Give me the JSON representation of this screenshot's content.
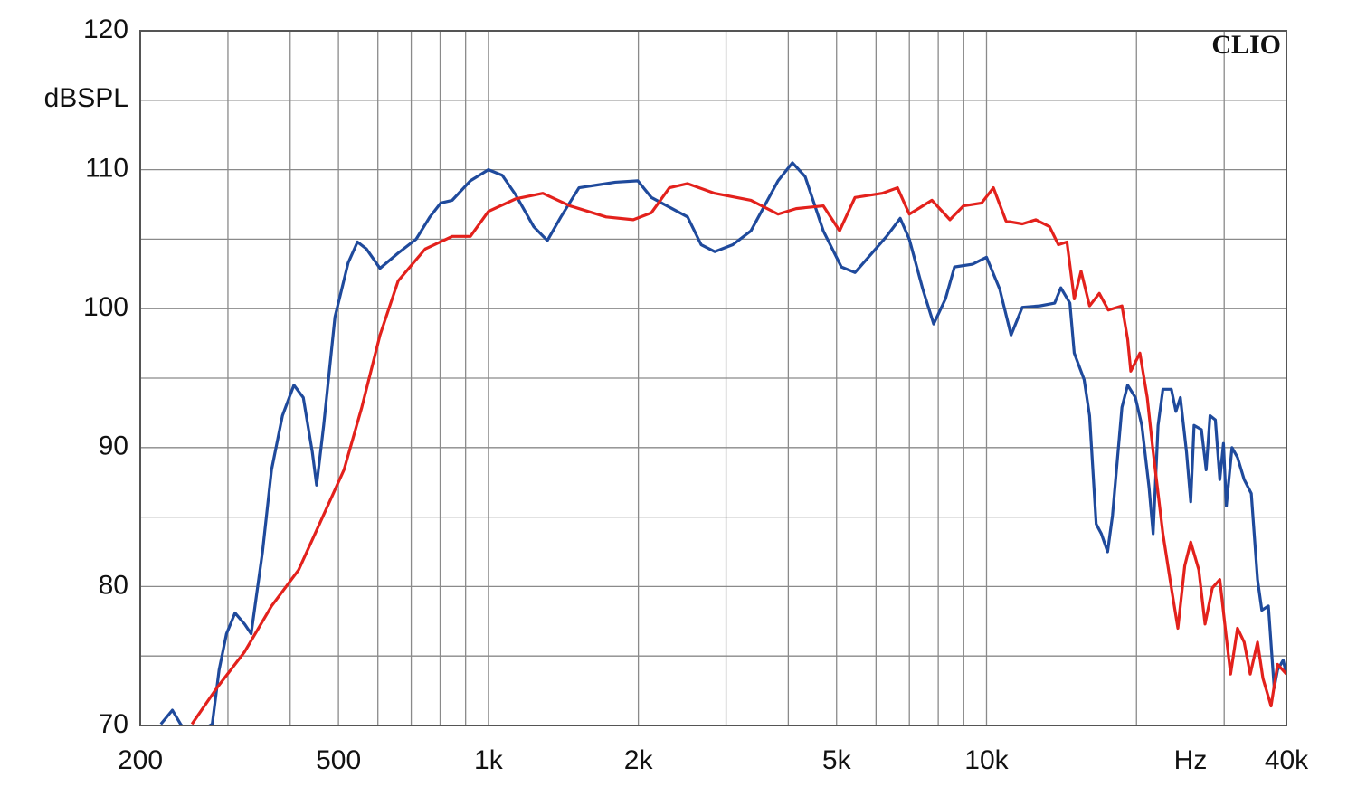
{
  "chart_data": {
    "type": "line",
    "y_label": "dBSPL",
    "x_label": "Hz",
    "annotation": "CLIO",
    "xscale": "log",
    "grid": true,
    "xlim": [
      200,
      40000
    ],
    "ylim": [
      70,
      120
    ],
    "xticks": [
      200,
      500,
      {
        "value": 1000,
        "label": "1k"
      },
      {
        "value": 2000,
        "label": "2k"
      },
      {
        "value": 5000,
        "label": "5k"
      },
      {
        "value": 10000,
        "label": "10k"
      },
      {
        "value": 40000,
        "label": "40k"
      }
    ],
    "xgrid": [
      300,
      400,
      600,
      700,
      800,
      900,
      3000,
      4000,
      6000,
      7000,
      8000,
      9000,
      20000,
      30000
    ],
    "yticks": [
      70,
      80,
      90,
      100,
      110,
      120
    ],
    "ygrid": [
      75,
      85,
      95,
      105,
      115
    ],
    "series": [
      {
        "color": "#1f4a9c",
        "x": [
          220,
          232,
          241,
          252,
          279,
          288,
          298,
          310,
          324,
          334,
          352,
          367,
          386,
          407,
          425,
          443,
          452,
          467,
          492,
          523,
          546,
          569,
          606,
          659,
          716,
          763,
          802,
          846,
          920,
          1000,
          1066,
          1134,
          1233,
          1313,
          1398,
          1520,
          1653,
          1797,
          1995,
          2124,
          2511,
          2674,
          2847,
          3095,
          3366,
          3815,
          4078,
          4324,
          4702,
          5112,
          5444,
          5794,
          6300,
          6710,
          6998,
          7448,
          7832,
          8270,
          8624,
          9374,
          10000,
          10630,
          11200,
          11800,
          12800,
          13700,
          14100,
          14700,
          15000,
          15700,
          16100,
          16600,
          17000,
          17500,
          17900,
          18700,
          19200,
          19900,
          20500,
          21200,
          21600,
          22100,
          22600,
          23500,
          24000,
          24500,
          25200,
          25700,
          26100,
          27000,
          27600,
          28100,
          28800,
          29400,
          29900,
          30300,
          31100,
          31900,
          32900,
          34000,
          35000,
          35700,
          36800,
          37800,
          38400,
          39400,
          40000
        ],
        "values": [
          70.1,
          71.1,
          70.1,
          69.2,
          70.1,
          74.0,
          76.6,
          78.1,
          77.3,
          76.6,
          82.5,
          88.4,
          92.3,
          94.5,
          93.6,
          89.7,
          87.3,
          91.6,
          99.4,
          103.3,
          104.8,
          104.3,
          102.9,
          104.0,
          105.0,
          106.6,
          107.6,
          107.8,
          109.2,
          110.0,
          109.6,
          108.2,
          105.9,
          104.9,
          106.6,
          108.7,
          108.9,
          109.1,
          109.2,
          108.0,
          106.6,
          104.6,
          104.1,
          104.6,
          105.6,
          109.2,
          110.5,
          109.5,
          105.6,
          103.0,
          102.6,
          103.7,
          105.2,
          106.5,
          105.0,
          101.4,
          98.9,
          100.7,
          103.0,
          103.2,
          103.7,
          101.4,
          98.1,
          100.1,
          100.2,
          100.4,
          101.5,
          100.4,
          96.8,
          94.9,
          92.3,
          84.5,
          83.8,
          82.5,
          85.1,
          92.9,
          94.5,
          93.6,
          91.6,
          87.1,
          83.8,
          91.6,
          94.2,
          94.2,
          92.6,
          93.6,
          89.7,
          86.1,
          91.6,
          91.3,
          88.4,
          92.3,
          92.0,
          87.7,
          90.3,
          85.8,
          90.0,
          89.3,
          87.7,
          86.7,
          80.5,
          78.3,
          78.6,
          72.7,
          74.0,
          74.7,
          73.7
        ]
      },
      {
        "color": "#e3211c",
        "x": [
          254,
          285,
          324,
          367,
          416,
          462,
          513,
          557,
          606,
          659,
          747,
          846,
          920,
          1000,
          1134,
          1286,
          1458,
          1723,
          1954,
          2124,
          2309,
          2511,
          2847,
          3366,
          3815,
          4148,
          4702,
          5070,
          5444,
          6170,
          6626,
          6998,
          7768,
          8444,
          8992,
          9776,
          10322,
          10944,
          11800,
          12560,
          13380,
          13940,
          14500,
          15000,
          15480,
          16100,
          16840,
          17560,
          18700,
          19200,
          19480,
          20320,
          21020,
          21600,
          22600,
          23500,
          24220,
          25000,
          25700,
          26680,
          27460,
          28400,
          29400,
          30240,
          30900,
          31900,
          32900,
          33840,
          35000,
          35880,
          37260,
          38400,
          40000
        ],
        "values": [
          70.1,
          72.7,
          75.3,
          78.6,
          81.2,
          84.8,
          88.4,
          92.9,
          98.1,
          102.0,
          104.3,
          105.2,
          105.2,
          107.0,
          107.9,
          108.3,
          107.4,
          106.6,
          106.4,
          106.9,
          108.7,
          109.0,
          108.3,
          107.8,
          106.8,
          107.2,
          107.4,
          105.6,
          108.0,
          108.3,
          108.7,
          106.8,
          107.8,
          106.4,
          107.4,
          107.6,
          108.7,
          106.3,
          106.1,
          106.4,
          105.9,
          104.6,
          104.8,
          100.7,
          102.7,
          100.2,
          101.1,
          99.9,
          100.2,
          97.8,
          95.5,
          96.8,
          93.6,
          89.7,
          83.8,
          79.9,
          77.0,
          81.5,
          83.2,
          81.2,
          77.3,
          79.9,
          80.5,
          76.6,
          73.7,
          77.0,
          76.0,
          73.7,
          76.0,
          73.4,
          71.4,
          74.4,
          73.7
        ]
      }
    ]
  }
}
